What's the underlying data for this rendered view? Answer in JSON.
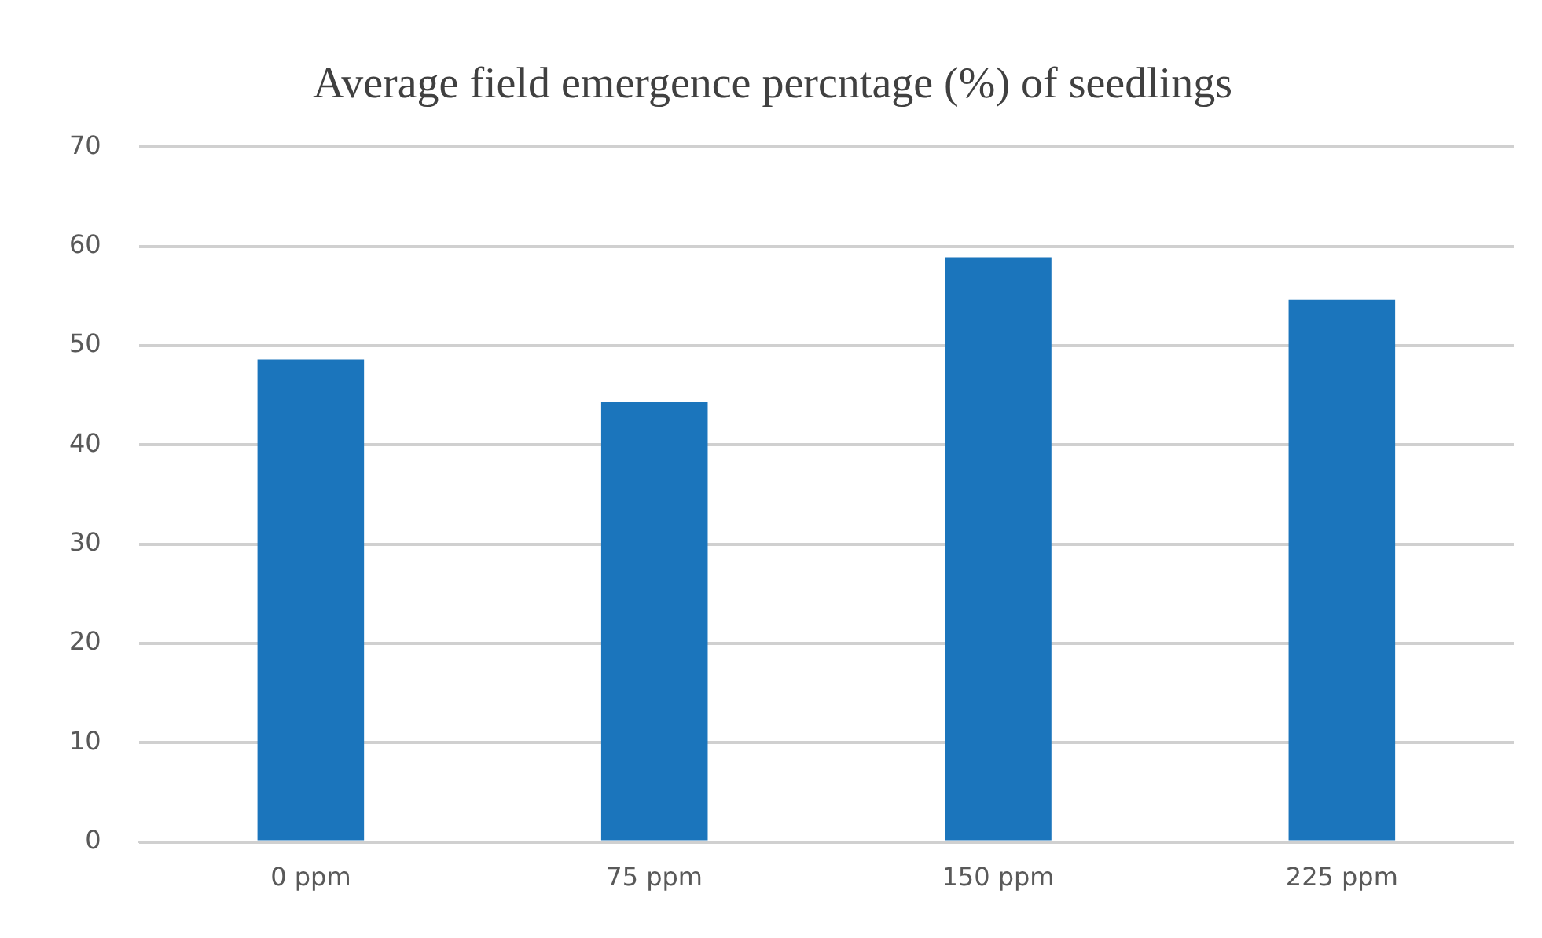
{
  "chart_data": {
    "type": "bar",
    "title": "Average field emergence percntage (%) of seedlings",
    "categories": [
      "0 ppm",
      "75 ppm",
      "150 ppm",
      "225 ppm"
    ],
    "values": [
      48.6,
      44.3,
      58.9,
      54.6
    ],
    "color": "#1b75bc",
    "ylim": [
      0,
      70
    ],
    "yticks": [
      0,
      10,
      20,
      30,
      40,
      50,
      60,
      70
    ],
    "grid": "y",
    "legend": false
  }
}
